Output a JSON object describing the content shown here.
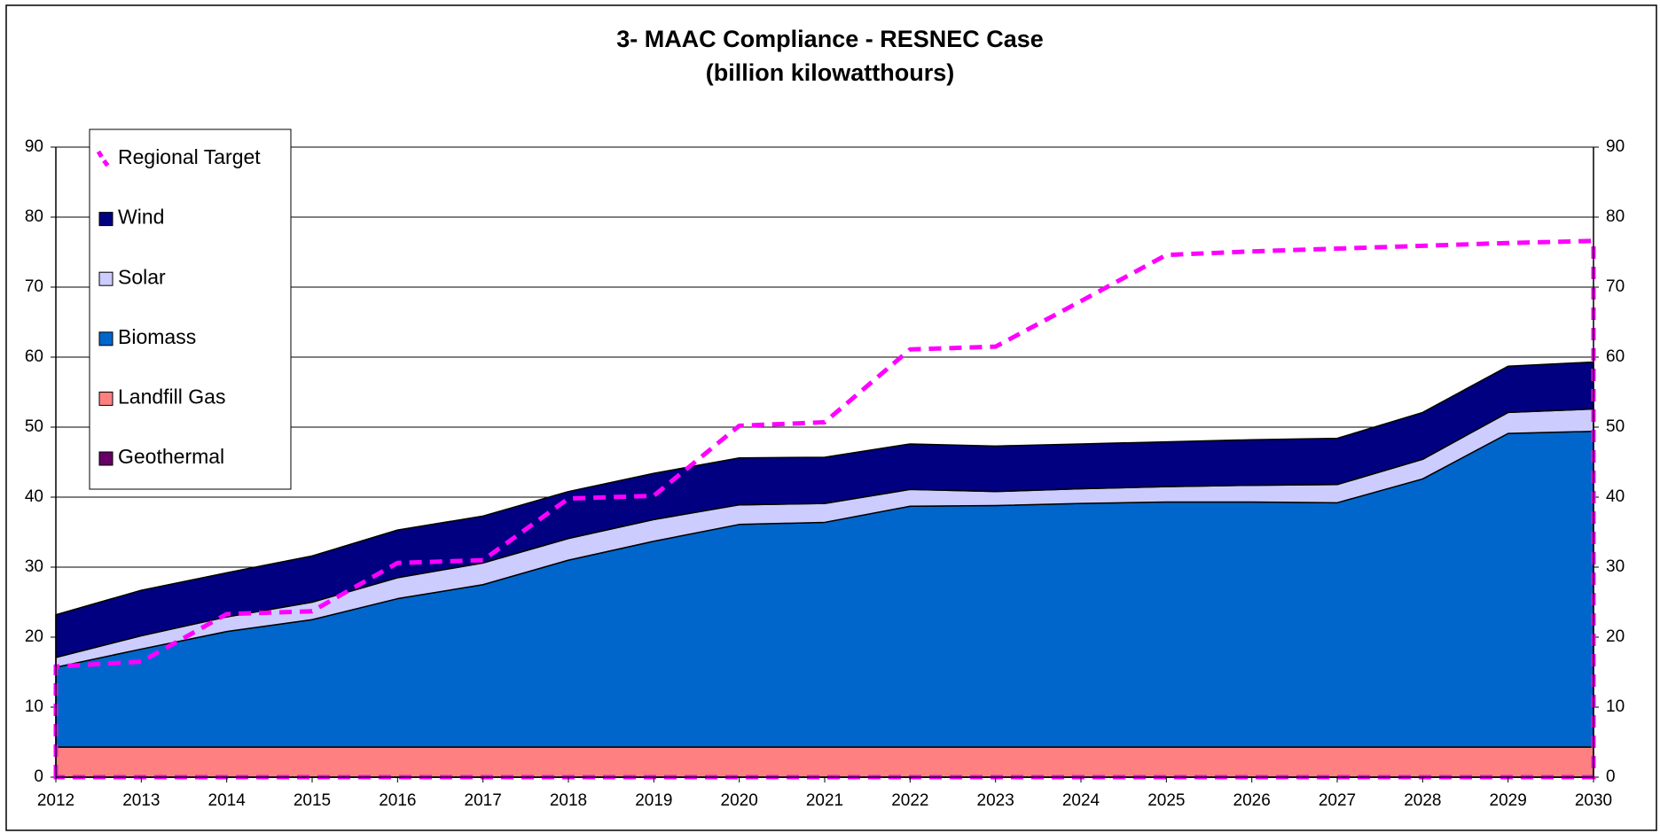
{
  "chart_data": {
    "type": "stacked_area",
    "title": "3- MAAC Compliance - RESNEC Case",
    "subtitle": "(billion kilowatthours)",
    "categories": [
      "2012",
      "2013",
      "2014",
      "2015",
      "2016",
      "2017",
      "2018",
      "2019",
      "2020",
      "2021",
      "2022",
      "2023",
      "2024",
      "2025",
      "2026",
      "2027",
      "2028",
      "2029",
      "2030"
    ],
    "ylim": [
      0,
      90
    ],
    "yticks": [
      0,
      10,
      20,
      30,
      40,
      50,
      60,
      70,
      80,
      90
    ],
    "y2lim": [
      0,
      90
    ],
    "y2ticks": [
      0,
      10,
      20,
      30,
      40,
      50,
      60,
      70,
      80,
      90
    ],
    "grid": true,
    "legend": "top-left",
    "series": [
      {
        "name": "Geothermal",
        "color": "#660066",
        "values": [
          0,
          0,
          0,
          0,
          0,
          0,
          0,
          0,
          0,
          0,
          0,
          0,
          0,
          0,
          0,
          0,
          0,
          0,
          0
        ]
      },
      {
        "name": "Landfill Gas",
        "color": "#ff8080",
        "values": [
          4.3,
          4.3,
          4.3,
          4.3,
          4.3,
          4.3,
          4.3,
          4.3,
          4.3,
          4.3,
          4.3,
          4.3,
          4.3,
          4.3,
          4.3,
          4.3,
          4.3,
          4.3,
          4.3
        ]
      },
      {
        "name": "Biomass",
        "color": "#0066cc",
        "values": [
          11.4,
          14.0,
          16.5,
          18.2,
          21.2,
          23.2,
          26.7,
          29.4,
          31.8,
          32.1,
          34.4,
          34.5,
          34.8,
          35.0,
          35.0,
          34.9,
          38.3,
          44.8,
          45.1
        ]
      },
      {
        "name": "Solar",
        "color": "#ccccff",
        "values": [
          1.4,
          1.9,
          2.1,
          2.5,
          3.0,
          3.1,
          3.1,
          3.1,
          2.8,
          2.7,
          2.4,
          2.0,
          2.1,
          2.2,
          2.4,
          2.6,
          2.8,
          3.0,
          3.2
        ]
      },
      {
        "name": "Wind",
        "color": "#000080",
        "values": [
          6.1,
          6.5,
          6.3,
          6.6,
          6.8,
          6.7,
          6.7,
          6.6,
          6.7,
          6.6,
          6.5,
          6.5,
          6.4,
          6.4,
          6.5,
          6.6,
          6.7,
          6.6,
          6.7
        ]
      },
      {
        "name": "Regional Target",
        "color": "#ff00ff",
        "type": "dashed_line",
        "values": [
          15.8,
          16.5,
          23.3,
          23.7,
          30.6,
          31.0,
          39.8,
          40.2,
          50.2,
          50.7,
          61.1,
          61.5,
          68.0,
          74.6,
          75.1,
          75.5,
          75.9,
          76.3,
          76.6
        ]
      }
    ]
  }
}
